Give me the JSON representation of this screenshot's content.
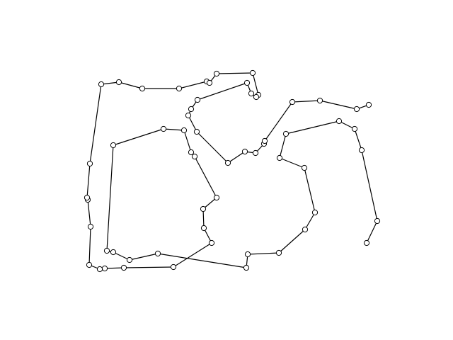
{
  "chart_data": {
    "type": "path-graph",
    "title": "",
    "node_count": 57,
    "colors": {
      "edge": "#000000",
      "node_fill": "#ffffff",
      "node_stroke": "#000000",
      "background": "#ffffff"
    }
  }
}
